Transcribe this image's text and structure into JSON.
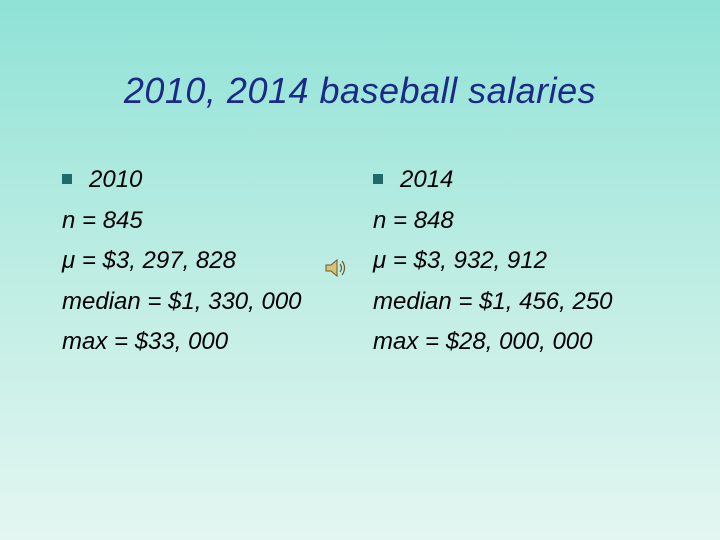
{
  "title": "2010, 2014 baseball salaries",
  "columns": [
    {
      "heading": "2010",
      "lines": [
        "n = 845",
        "μ = $3, 297, 828",
        "median = $1, 330, 000",
        "max = $33, 000"
      ]
    },
    {
      "heading": "2014",
      "lines": [
        "n = 848",
        "μ = $3, 932, 912",
        "median = $1, 456, 250",
        "max = $28, 000, 000"
      ]
    }
  ]
}
